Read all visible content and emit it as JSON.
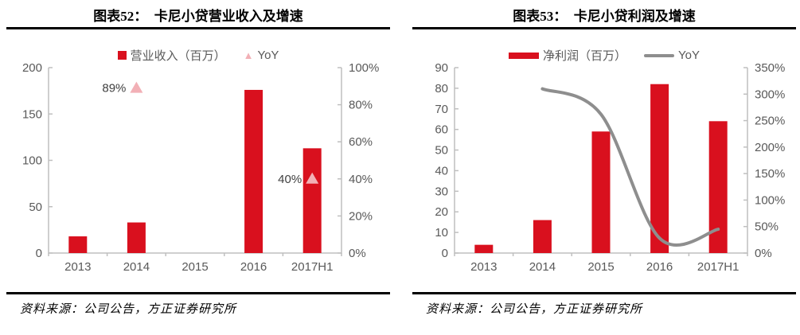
{
  "figures": [
    {
      "source": "资料来源：公司公告，方正证券研究所"
    },
    {
      "source": "资料来源：公司公告，方正证券研究所"
    }
  ],
  "colors": {
    "bar_red": "#d9101e",
    "yoy_pink": "#f2b0b6",
    "yoy_line_gray": "#8e8e8e",
    "axis_line": "#bfbfbf",
    "tick_text": "#595959",
    "data_label_text": "#404040",
    "rule_black": "#000000"
  },
  "chart_data": [
    {
      "type": "bar",
      "title": "图表52：　卡尼小贷营业收入及增速",
      "categories": [
        "2013",
        "2014",
        "2015",
        "2016",
        "2017H1"
      ],
      "series": [
        {
          "name": "营业收入（百万）",
          "type": "bar",
          "axis": "left",
          "values": [
            18,
            33,
            0,
            176,
            113
          ]
        },
        {
          "name": "YoY",
          "type": "triangle",
          "axis": "right",
          "values": [
            null,
            89,
            null,
            null,
            40
          ],
          "labels": [
            null,
            "89%",
            null,
            null,
            "40%"
          ]
        }
      ],
      "left_axis": {
        "min": 0,
        "max": 200,
        "step": 50,
        "ticks": [
          "0",
          "50",
          "100",
          "150",
          "200"
        ]
      },
      "right_axis": {
        "min": 0,
        "max": 100,
        "step": 20,
        "ticks": [
          "0%",
          "20%",
          "40%",
          "60%",
          "80%",
          "100%"
        ]
      },
      "grid": false,
      "legend_position": "top-center"
    },
    {
      "type": "bar+line",
      "title": "图表53：　卡尼小贷利润及增速",
      "categories": [
        "2013",
        "2014",
        "2015",
        "2016",
        "2017H1"
      ],
      "series": [
        {
          "name": "净利润（百万）",
          "type": "bar",
          "axis": "left",
          "values": [
            4,
            16,
            59,
            82,
            64
          ]
        },
        {
          "name": "YoY",
          "type": "line",
          "axis": "right",
          "values": [
            null,
            310,
            262,
            28,
            45
          ]
        }
      ],
      "left_axis": {
        "min": 0,
        "max": 90,
        "step": 10,
        "ticks": [
          "0",
          "10",
          "20",
          "30",
          "40",
          "50",
          "60",
          "70",
          "80",
          "90"
        ]
      },
      "right_axis": {
        "min": 0,
        "max": 350,
        "step": 50,
        "ticks": [
          "0%",
          "50%",
          "100%",
          "150%",
          "200%",
          "250%",
          "300%",
          "350%"
        ]
      },
      "grid": false,
      "legend_position": "top-center"
    }
  ]
}
